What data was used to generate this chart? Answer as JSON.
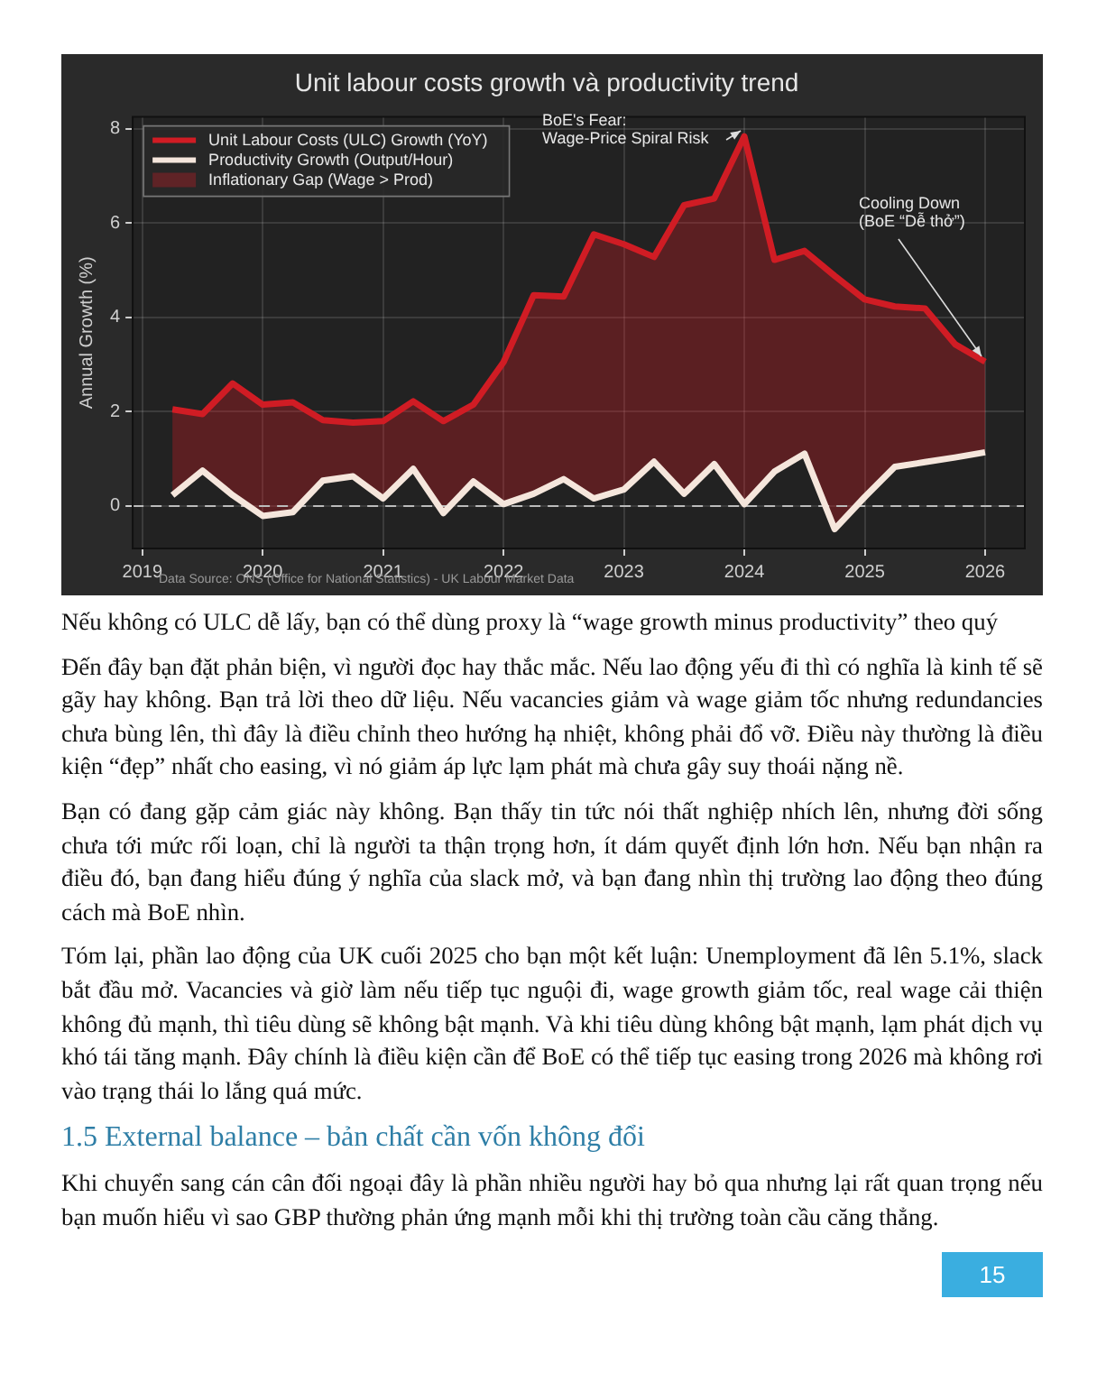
{
  "chart_data": {
    "type": "line",
    "title": "Unit labour costs growth và productivity trend",
    "ylabel": "Annual Growth (%)",
    "x": [
      2019.25,
      2019.5,
      2019.75,
      2020,
      2020.25,
      2020.5,
      2020.75,
      2021,
      2021.25,
      2021.5,
      2021.75,
      2022,
      2022.25,
      2022.5,
      2022.75,
      2023,
      2023.25,
      2023.5,
      2023.75,
      2024,
      2024.25,
      2024.5,
      2024.75,
      2025,
      2025.25,
      2025.5,
      2025.75,
      2026
    ],
    "series": [
      {
        "name": "Unit Labour Costs (ULC) Growth (YoY)",
        "color": "#d01c24",
        "values": [
          2.05,
          1.95,
          2.6,
          2.15,
          2.2,
          1.82,
          1.77,
          1.8,
          2.22,
          1.8,
          2.15,
          3.05,
          4.47,
          4.44,
          5.76,
          5.55,
          5.28,
          6.38,
          6.52,
          7.84,
          5.22,
          5.41,
          4.88,
          4.38,
          4.23,
          4.19,
          3.43,
          3.06
        ],
        "lower": [
          0.23,
          0.75,
          0.23,
          -0.21,
          -0.13,
          0.54,
          0.63,
          0.16,
          0.79,
          -0.15,
          0.52,
          0.04,
          0.26,
          0.57,
          0.16,
          0.35,
          0.94,
          0.26,
          0.89,
          0.04,
          0.73,
          1.11,
          -0.49,
          0.19,
          0.83,
          0.93,
          1.03,
          1.14
        ],
        "upper": [
          2.05,
          1.95,
          2.6,
          2.15,
          2.2,
          1.82,
          1.77,
          1.8,
          2.22,
          1.8,
          2.15,
          3.05,
          4.47,
          4.44,
          5.76,
          5.55,
          5.28,
          6.38,
          6.52,
          7.84,
          5.22,
          5.41,
          4.88,
          4.38,
          4.23,
          4.19,
          3.43,
          3.06
        ]
      },
      {
        "name": "Productivity Growth (Output/Hour)",
        "color": "#f5e6dc",
        "values": [
          0.23,
          0.75,
          0.23,
          -0.21,
          -0.13,
          0.54,
          0.63,
          0.16,
          0.79,
          -0.15,
          0.52,
          0.04,
          0.26,
          0.57,
          0.16,
          0.35,
          0.94,
          0.26,
          0.89,
          0.04,
          0.73,
          1.11,
          -0.49,
          0.19,
          0.83,
          0.93,
          1.03,
          1.14
        ]
      }
    ],
    "xlim": [
      2018.92,
      2026.33
    ],
    "xticks": [
      2019,
      2020,
      2021,
      2022,
      2023,
      2024,
      2025,
      2026
    ],
    "ylim": [
      -0.9,
      8.25
    ],
    "yticks": [
      0,
      2,
      4,
      6,
      8
    ],
    "grid": true,
    "legend": "top left",
    "marker": "none",
    "line_style": "solid",
    "ref_lines": [
      {
        "axis": "y",
        "value": 0,
        "color": "#bbbbbb",
        "line_style": "dashed"
      }
    ],
    "annotations": [
      {
        "text": "BoE's Fear:\nWage-Price Spiral Risk",
        "x": 2024,
        "y": 7.84
      },
      {
        "text": "Cooling Down\n(BoE “Dễ thở”)",
        "x": 2026,
        "y": 3.06
      },
      "Inflationary Gap (Wage > Prod)",
      "Data Source: ONS (Office for National Statistics) - UK Labour Market Data",
      "Nếu không có ULC dễ lấy, bạn có thể dùng proxy là “wage growth minus productivity” theo quý",
      "Đến đây bạn đặt phản biện, vì người đọc hay thắc mắc. Nếu lao động yếu đi thì có nghĩa là kinh tế sẽ gãy hay không. Bạn trả lời theo dữ liệu. Nếu vacancies giảm và wage giảm tốc nhưng redundancies chưa bùng lên, thì đây là điều chỉnh theo hướng hạ nhiệt, không phải đổ vỡ. Điều này thường là điều kiện “đẹp” nhất cho easing, vì nó giảm áp lực lạm phát mà chưa gây suy thoái nặng nề.",
      "Bạn có đang gặp cảm giác này không. Bạn thấy tin tức nói thất nghiệp nhích lên, nhưng đời sống chưa tới mức rối loạn, chỉ là người ta thận trọng hơn, ít dám quyết định lớn hơn. Nếu bạn nhận ra điều đó, bạn đang hiểu đúng ý nghĩa của slack mở, và bạn đang nhìn thị trường lao động theo đúng cách mà BoE nhìn.",
      "Tóm lại, phần lao động của UK cuối 2025 cho bạn một kết luận: Unemployment đã lên 5.1%, slack bắt đầu mở. Vacancies và giờ làm nếu tiếp tục nguội đi, wage growth giảm tốc, real wage cải thiện không đủ mạnh, thì tiêu dùng sẽ không bật mạnh. Và khi tiêu dùng không bật mạnh, lạm phát dịch vụ khó tái tăng mạnh. Đây chính là điều kiện cần để BoE có thể tiếp tục easing trong 2026 mà không rơi vào trạng thái lo lắng quá mức.",
      "1.5 External balance – bản chất cần vốn không đổi",
      "Khi chuyển sang cán cân đối ngoại đây là phần nhiều người hay bỏ qua nhưng lại rất quan trọng nếu bạn muốn hiểu vì sao GBP thường phản ứng mạnh mỗi khi thị trường toàn cầu căng thẳng.",
      "15"
    ]
  }
}
